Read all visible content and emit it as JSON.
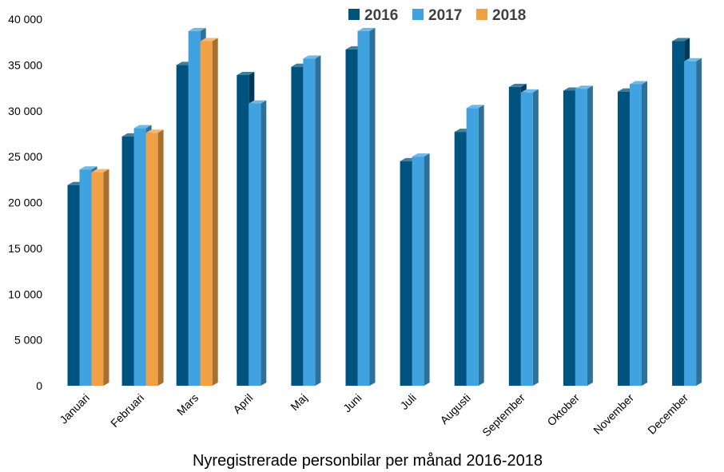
{
  "chart_data": {
    "type": "bar",
    "title": "",
    "xlabel": "Nyregistrerade personbilar per månad 2016-2018",
    "ylabel": "",
    "ylim": [
      0,
      40000
    ],
    "yticks": [
      0,
      5000,
      10000,
      15000,
      20000,
      25000,
      30000,
      35000,
      40000
    ],
    "ytick_labels": [
      "0",
      "5 000",
      "10 000",
      "15 000",
      "20 000",
      "25 000",
      "30 000",
      "35 000",
      "40 000"
    ],
    "grid": false,
    "legend_position": "top-center",
    "categories": [
      "Januari",
      "Februari",
      "Mars",
      "April",
      "Maj",
      "Juni",
      "Juli",
      "Augusti",
      "September",
      "Oktober",
      "November",
      "December"
    ],
    "series": [
      {
        "name": "2016",
        "color": "#00527f",
        "values": [
          21900,
          27200,
          35000,
          33900,
          34800,
          36700,
          24500,
          27700,
          32600,
          32200,
          32100,
          37600
        ]
      },
      {
        "name": "2017",
        "color": "#40a2de",
        "values": [
          23600,
          28100,
          38700,
          30800,
          35700,
          38700,
          25000,
          30300,
          32000,
          32400,
          32900,
          35400
        ]
      },
      {
        "name": "2018",
        "color": "#f0a045",
        "values": [
          23300,
          27600,
          37600,
          null,
          null,
          null,
          null,
          null,
          null,
          null,
          null,
          null
        ]
      }
    ]
  }
}
